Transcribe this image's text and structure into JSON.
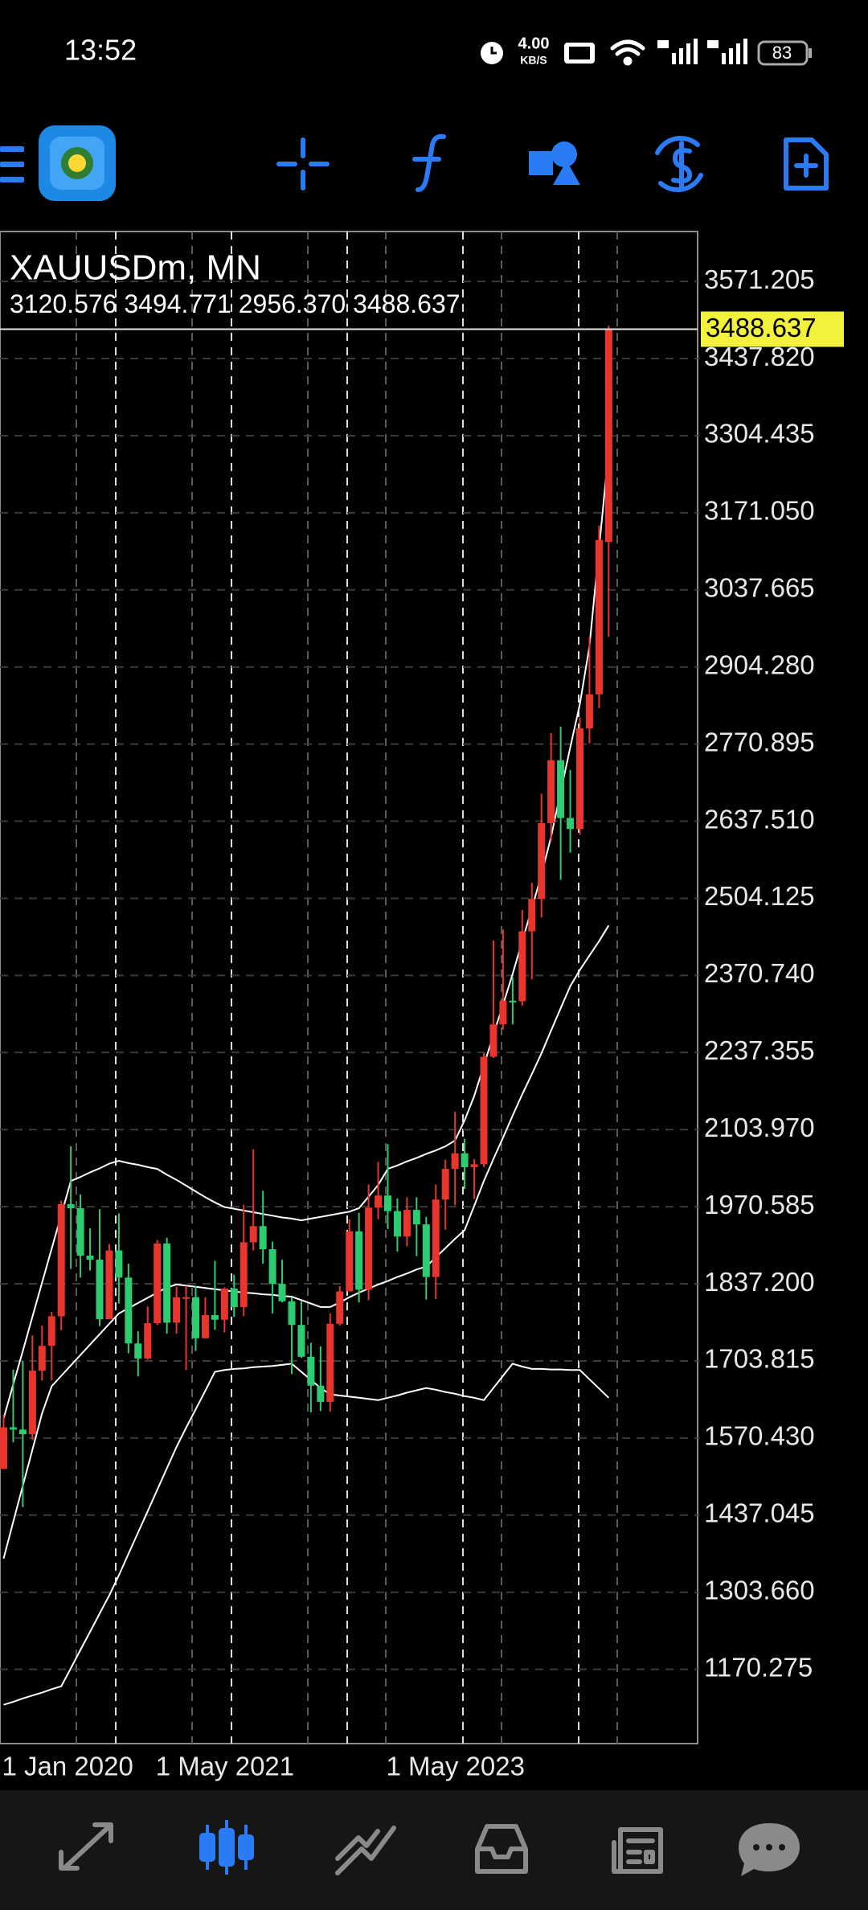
{
  "status_bar": {
    "time": "13:52",
    "speed": "4.00",
    "speed_unit": "KB/S",
    "battery": "83"
  },
  "chart_data": {
    "type": "candlestick",
    "title": "XAUUSDm, MN",
    "last_labels": [
      "3120.576",
      "3494.771",
      "2956.370",
      "3488.637"
    ],
    "up_color": "#e8352e",
    "down_color": "#2ecc71",
    "band_color": "#ffffff",
    "categories": [
      "1 Jan 2020",
      null,
      null,
      null,
      null,
      null,
      null,
      null,
      null,
      null,
      null,
      null,
      null,
      null,
      null,
      null,
      "1 May 2021",
      null,
      null,
      null,
      null,
      null,
      null,
      null,
      null,
      null,
      null,
      null,
      null,
      null,
      null,
      null,
      null,
      null,
      null,
      null,
      null,
      null,
      null,
      null,
      "1 May 2023",
      null,
      null,
      null,
      null,
      null,
      null,
      null,
      null,
      null,
      null,
      null,
      null,
      null,
      null,
      null,
      null,
      null,
      null,
      null,
      null,
      null,
      null,
      null
    ],
    "open": [
      1517,
      1589,
      1585,
      1577,
      1687,
      1730,
      1781,
      1975,
      1968,
      1886,
      1879,
      1776,
      1895,
      1848,
      1734,
      1708,
      1769,
      1907,
      1770,
      1814,
      1814,
      1743,
      1783,
      1775,
      1829,
      1797,
      1909,
      1937,
      1897,
      1837,
      1807,
      1766,
      1711,
      1661,
      1633,
      1768,
      1824,
      1928,
      1827,
      1969,
      1990,
      1963,
      1919,
      1965,
      1940,
      1849,
      1983,
      2036,
      2063,
      2039,
      2044,
      2230,
      2286,
      2327,
      2326,
      2447,
      2503,
      2634,
      2743,
      2643,
      2624,
      2798,
      2857,
      3120.576
    ],
    "high": [
      1611,
      1689,
      1704,
      1748,
      1765,
      1789,
      1981,
      2075,
      1992,
      1933,
      1966,
      1906,
      1959,
      1872,
      1755,
      1798,
      1913,
      1917,
      1832,
      1834,
      1834,
      1814,
      1877,
      1831,
      1853,
      1974,
      2070,
      1998,
      1910,
      1879,
      1814,
      1807,
      1735,
      1729,
      1786,
      1833,
      1949,
      1960,
      2009,
      2048,
      2079,
      1985,
      1987,
      1987,
      1953,
      2009,
      2052,
      2135,
      2088,
      2053,
      2236,
      2431,
      2450,
      2368,
      2484,
      2531,
      2685,
      2790,
      2801,
      2726,
      2817,
      2956,
      3149,
      3494.771
    ],
    "low": [
      1517,
      1563,
      1451,
      1567,
      1670,
      1670,
      1757,
      1863,
      1848,
      1860,
      1764,
      1776,
      1803,
      1717,
      1677,
      1706,
      1766,
      1751,
      1751,
      1688,
      1721,
      1746,
      1758,
      1753,
      1780,
      1781,
      1895,
      1872,
      1786,
      1805,
      1681,
      1709,
      1615,
      1617,
      1616,
      1765,
      1824,
      1805,
      1809,
      1949,
      1932,
      1893,
      1902,
      1885,
      1810,
      1811,
      1931,
      1973,
      2001,
      1984,
      2039,
      2228,
      2277,
      2286,
      2318,
      2364,
      2471,
      2603,
      2536,
      2583,
      2614,
      2772,
      2833,
      2956.37
    ],
    "close": [
      1589,
      1585,
      1577,
      1687,
      1730,
      1781,
      1975,
      1968,
      1886,
      1879,
      1776,
      1895,
      1848,
      1734,
      1708,
      1769,
      1907,
      1770,
      1814,
      1814,
      1743,
      1783,
      1775,
      1829,
      1797,
      1909,
      1937,
      1897,
      1837,
      1807,
      1766,
      1711,
      1661,
      1633,
      1768,
      1824,
      1928,
      1827,
      1969,
      1990,
      1963,
      1919,
      1965,
      1940,
      1849,
      1983,
      2036,
      2063,
      2039,
      2044,
      2230,
      2286,
      2327,
      2326,
      2447,
      2503,
      2634,
      2743,
      2643,
      2624,
      2798,
      2857,
      3124,
      3488.637
    ],
    "bands": [
      [
        1604,
        1663,
        1721,
        1780,
        1839,
        1898,
        1956,
        2015,
        2022,
        2030,
        2037,
        2045,
        2050,
        2046,
        2043,
        2039,
        2036,
        2026,
        2017,
        2007,
        1997,
        1987,
        1978,
        1970,
        1967,
        1964,
        1961,
        1958,
        1955,
        1952,
        1950,
        1947,
        1950,
        1953,
        1956,
        1959,
        1962,
        1968,
        1988,
        2008,
        2036,
        2042,
        2049,
        2055,
        2062,
        2068,
        2075,
        2085,
        2120,
        2162,
        2215,
        2268,
        2320,
        2373,
        2430,
        2487,
        2545,
        2610,
        2688,
        2765,
        2840,
        2940,
        3110,
        3278
      ],
      [
        1362,
        1425,
        1488,
        1550,
        1613,
        1660,
        1678,
        1696,
        1714,
        1732,
        1750,
        1768,
        1786,
        1795,
        1804,
        1813,
        1822,
        1831,
        1836,
        1834,
        1832,
        1830,
        1828,
        1826,
        1824,
        1822,
        1821,
        1819,
        1818,
        1816,
        1815,
        1809,
        1803,
        1797,
        1797,
        1805,
        1814,
        1822,
        1829,
        1836,
        1842,
        1849,
        1855,
        1862,
        1867,
        1883,
        1899,
        1915,
        1930,
        1972,
        2015,
        2053,
        2090,
        2128,
        2165,
        2200,
        2236,
        2275,
        2314,
        2352,
        2380,
        2405,
        2430,
        2457
      ],
      [
        1109,
        1114,
        1120,
        1125,
        1130,
        1136,
        1141,
        1172,
        1204,
        1235,
        1267,
        1298,
        1333,
        1370,
        1407,
        1444,
        1481,
        1518,
        1555,
        1588,
        1620,
        1652,
        1685,
        1688,
        1690,
        1691,
        1693,
        1694,
        1695,
        1697,
        1699,
        1685,
        1671,
        1657,
        1646,
        1644,
        1642,
        1640,
        1638,
        1636,
        1640,
        1644,
        1649,
        1653,
        1657,
        1654,
        1650,
        1647,
        1643,
        1640,
        1636,
        1657,
        1678,
        1699,
        1694,
        1690,
        1690,
        1689,
        1689,
        1688,
        1688,
        1672,
        1656,
        1640
      ]
    ],
    "ylim": [
      1041.8,
      3657.6
    ],
    "yticks": [
      3571.205,
      {
        "value": 3437.82,
        "label": "3437.820"
      },
      3304.435,
      {
        "value": 3171.05,
        "label": "3171.050"
      },
      3037.665,
      {
        "value": 2904.28,
        "label": "2904.280"
      },
      2770.895,
      {
        "value": 2637.51,
        "label": "2637.510"
      },
      2504.125,
      {
        "value": 2370.74,
        "label": "2370.740"
      },
      2237.355,
      {
        "value": 2103.97,
        "label": "2103.970"
      },
      1970.585,
      {
        "value": 1837.2,
        "label": "1837.200"
      },
      1703.815,
      {
        "value": 1570.43,
        "label": "1570.430"
      },
      1437.045,
      {
        "value": 1303.66,
        "label": "1303.660"
      },
      1170.275
    ],
    "grid": true
  }
}
